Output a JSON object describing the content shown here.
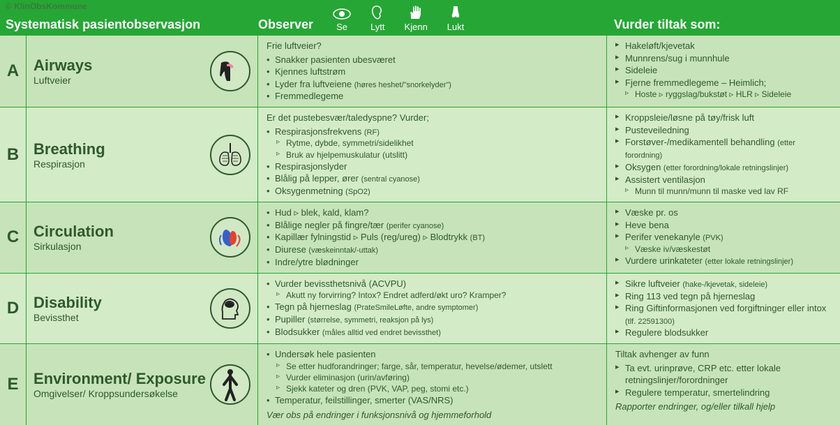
{
  "header": {
    "copyright": "© KlinObsKommune",
    "systematic": "Systematisk pasientobservasjon",
    "observer": "Observer",
    "senses": [
      {
        "label": "Se"
      },
      {
        "label": "Lytt"
      },
      {
        "label": "Kjenn"
      },
      {
        "label": "Lukt"
      }
    ],
    "actions": "Vurder tiltak som:"
  },
  "rows": [
    {
      "letter": "A",
      "titleMain": "Airways",
      "titleSub": "Luftveier",
      "observerIntro": "Frie luftveier?",
      "observerBullets": [
        {
          "t": "Snakker pasienten ubesværet"
        },
        {
          "t": "Kjennes luftstrøm"
        },
        {
          "t": "Lyder fra luftveiene",
          "paren": "(høres heshet/\"snorkelyder\")"
        },
        {
          "t": "Fremmedlegeme"
        }
      ],
      "actions": [
        {
          "t": "Hakeløft/kjevetak"
        },
        {
          "t": "Munnrens/sug i munnhule"
        },
        {
          "t": "Sideleie"
        },
        {
          "t": "Fjerne fremmedlegeme – Heimlich;",
          "sub": "Hoste ▹ ryggslag/bukstøt ▹ HLR ▹ Sideleie"
        }
      ]
    },
    {
      "letter": "B",
      "titleMain": "Breathing",
      "titleSub": "Respirasjon",
      "observerIntro": "Er det pustebesvær/taledyspne? Vurder;",
      "observerBullets": [
        {
          "t": "Respirasjonsfrekvens",
          "paren": "(RF)",
          "subs": [
            "Rytme, dybde, symmetri/sidelikhet",
            "Bruk av hjelpemuskulatur (utslitt)"
          ]
        },
        {
          "t": "Respirasjonslyder"
        },
        {
          "t": "Blålig på lepper, ører",
          "paren": "(sentral cyanose)"
        },
        {
          "t": "Oksygenmetning",
          "paren": "(SpO2)"
        }
      ],
      "actions": [
        {
          "t": "Kroppsleie/løsne på tøy/frisk luft"
        },
        {
          "t": "Pusteveiledning"
        },
        {
          "t": "Forstøver-/medikamentell behandling",
          "suffix": "(etter forordning)"
        },
        {
          "t": "Oksygen",
          "suffix": "(etter forordning/lokale retningslinjer)"
        },
        {
          "t": "Assistert ventilasjon",
          "sub": "Munn til munn/munn til maske ved lav RF"
        }
      ]
    },
    {
      "letter": "C",
      "titleMain": "Circulation",
      "titleSub": "Sirkulasjon",
      "observerBullets": [
        {
          "t": "Hud ▹ blek, kald, klam?"
        },
        {
          "t": "Blålige negler på fingre/tær",
          "paren": "(perifer cyanose)"
        },
        {
          "t": "Kapillær fylningstid  ▹ Puls (reg/ureg)  ▹ Blodtrykk",
          "paren": "(BT)"
        },
        {
          "t": "Diurese",
          "paren": "(væskeinntak/-uttak)"
        },
        {
          "t": "Indre/ytre blødninger"
        }
      ],
      "actions": [
        {
          "t": "Væske pr. os"
        },
        {
          "t": "Heve bena"
        },
        {
          "t": "Perifer venekanyle",
          "suffix": "(PVK)",
          "sub": "Væske iv/væskestøt"
        },
        {
          "t": "Vurdere urinkateter",
          "suffix": "(etter lokale retningslinjer)"
        }
      ]
    },
    {
      "letter": "D",
      "titleMain": "Disability",
      "titleSub": "Bevissthet",
      "observerBullets": [
        {
          "t": "Vurder bevissthetsnivå (ACVPU)",
          "subs": [
            "Akutt ny forvirring? Intox? Endret adferd/økt uro? Kramper?"
          ]
        },
        {
          "t": "Tegn på hjerneslag",
          "paren": "(PrateSmileLøfte, andre symptomer)"
        },
        {
          "t": "Pupiller",
          "paren": "(størrelse, symmetri, reaksjon på lys)"
        },
        {
          "t": "Blodsukker",
          "paren": "(måles alltid ved endret bevissthet)"
        }
      ],
      "actions": [
        {
          "t": "Sikre luftveier",
          "suffix": "(hake-/kjevetak, sideleie)"
        },
        {
          "t": "Ring 113 ved tegn på hjerneslag"
        },
        {
          "t": "Ring Giftinformasjonen ved forgiftninger eller intox",
          "suffix": "(tlf. 22591300)"
        },
        {
          "t": "Regulere blodsukker"
        }
      ]
    },
    {
      "letter": "E",
      "titleMain": "Environment/ Exposure",
      "titleSub": "Omgivelser/ Kroppsundersøkelse",
      "observerBullets": [
        {
          "t": "Undersøk hele pasienten",
          "subs": [
            "Se etter hudforandringer; farge, sår, temperatur, hevelse/ødemer, utslett",
            "Vurder eliminasjon (urin/avføring)",
            "Sjekk kateter og dren (PVK, VAP, peg, stomi etc.)"
          ]
        },
        {
          "t": "Temperatur, feilstillinger, smerter (VAS/NRS)"
        }
      ],
      "observerFooter": "Vær obs på endringer i funksjonsnivå og hjemmeforhold",
      "actionsIntro": "Tiltak avhenger av funn",
      "actions": [
        {
          "t": "Ta evt. urinprøve, CRP etc. etter lokale retningslinjer/forordninger"
        },
        {
          "t": "Regulere temperatur, smertelindring"
        }
      ],
      "actionsFooter": "Rapporter endringer, og/eller tilkall hjelp"
    }
  ]
}
